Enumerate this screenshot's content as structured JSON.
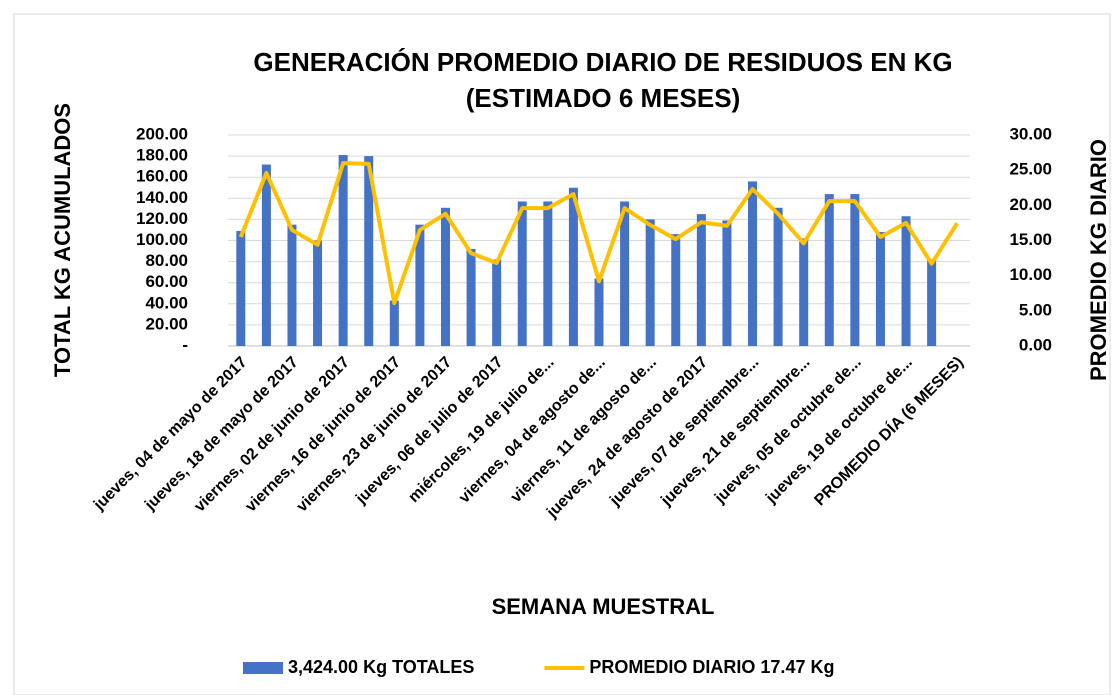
{
  "chart_data": {
    "type": "bar_line",
    "title": [
      "GENERACIÓN PROMEDIO DIARIO DE RESIDUOS EN KG",
      "(ESTIMADO 6 MESES)"
    ],
    "x_label": "SEMANA MUESTRAL",
    "y_label": "TOTAL KG ACUMULADOS",
    "y2_label": "PROMEDIO KG DIARIO",
    "categories": [
      "jueves, 04 de mayo de 2017",
      null,
      "jueves, 18 de mayo de 2017",
      null,
      "viernes, 02 de junio de 2017",
      null,
      "viernes, 16 de junio de 2017",
      null,
      "viernes, 23 de junio de 2017",
      null,
      "jueves, 06 de julio de 2017",
      null,
      "miércoles, 19 de julio de...",
      null,
      "viernes, 04 de agosto de...",
      null,
      "viernes, 11 de agosto de...",
      null,
      "jueves, 24 de agosto de 2017",
      null,
      "jueves, 07 de septiembre...",
      null,
      "jueves, 21 de septiembre...",
      null,
      "jueves, 05 de octubre de...",
      null,
      "jueves, 19 de octubre de...",
      null,
      "PROMEDIO DÍA (6 MESES)"
    ],
    "series": [
      {
        "name": "3,424.00 Kg TOTALES",
        "type": "bar",
        "color": "#4472c4",
        "axis": "y",
        "values": [
          109,
          172,
          115,
          100,
          181,
          180,
          43,
          115,
          131,
          92,
          82,
          137,
          137,
          150,
          64,
          137,
          120,
          106,
          125,
          119,
          156,
          131,
          102,
          144,
          144,
          108,
          123,
          82,
          null
        ]
      },
      {
        "name": "PROMEDIO DIARIO 17.47 Kg",
        "type": "line",
        "color": "#ffc000",
        "axis": "y2",
        "values": [
          15.5,
          24.6,
          16.5,
          14.4,
          26,
          25.9,
          6.1,
          16.5,
          18.8,
          13.2,
          11.8,
          19.6,
          19.6,
          21.6,
          9.2,
          19.6,
          17.2,
          15.2,
          17.6,
          17.1,
          22.3,
          18.8,
          14.6,
          20.6,
          20.6,
          15.5,
          17.5,
          11.7,
          17.47
        ]
      }
    ],
    "ylim": [
      0,
      200
    ],
    "yticks": [
      {
        "value": 0,
        "label": "-"
      },
      {
        "value": 20,
        "label": "20.00"
      },
      {
        "value": 40,
        "label": "40.00"
      },
      {
        "value": 60,
        "label": "60.00"
      },
      {
        "value": 80,
        "label": "80.00"
      },
      {
        "value": 100,
        "label": "100.00"
      },
      {
        "value": 120,
        "label": "120.00"
      },
      {
        "value": 140,
        "label": "140.00"
      },
      {
        "value": 160,
        "label": "160.00"
      },
      {
        "value": 180,
        "label": "180.00"
      },
      {
        "value": 200,
        "label": "200.00"
      }
    ],
    "y2lim": [
      0,
      30
    ],
    "y2ticks": [
      {
        "value": 0,
        "label": "0.00"
      },
      {
        "value": 5,
        "label": "5.00"
      },
      {
        "value": 10,
        "label": "10.00"
      },
      {
        "value": 15,
        "label": "15.00"
      },
      {
        "value": 20,
        "label": "20.00"
      },
      {
        "value": 25,
        "label": "25.00"
      },
      {
        "value": 30,
        "label": "30.00"
      }
    ],
    "grid": true,
    "legend": "bottom"
  }
}
